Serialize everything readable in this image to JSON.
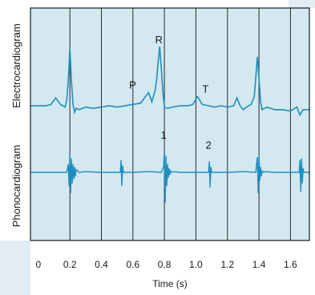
{
  "chart_data": {
    "type": "line",
    "xlabel": "Time (s)",
    "xlim": [
      -0.05,
      1.72
    ],
    "x_ticks": [
      "0",
      "0.2",
      "0.4",
      "0.6",
      "0.8",
      "1.0",
      "1.2",
      "1.4",
      "1.6"
    ],
    "x_tick_values": [
      0,
      0.2,
      0.4,
      0.6,
      0.8,
      1.0,
      1.2,
      1.4,
      1.6
    ],
    "gridlines_x": [
      0.2,
      0.4,
      0.6,
      0.8,
      1.0,
      1.2,
      1.4,
      1.6
    ],
    "grid": true,
    "series": [
      {
        "name": "Electrocardiogram",
        "x": [
          -0.05,
          0.05,
          0.08,
          0.11,
          0.14,
          0.17,
          0.18,
          0.19,
          0.2,
          0.21,
          0.22,
          0.23,
          0.24,
          0.26,
          0.3,
          0.35,
          0.4,
          0.45,
          0.5,
          0.55,
          0.6,
          0.65,
          0.68,
          0.7,
          0.72,
          0.74,
          0.75,
          0.76,
          0.77,
          0.78,
          0.79,
          0.8,
          0.82,
          0.85,
          0.9,
          0.95,
          0.98,
          1.01,
          1.04,
          1.08,
          1.12,
          1.16,
          1.2,
          1.24,
          1.26,
          1.28,
          1.3,
          1.32,
          1.35,
          1.37,
          1.38,
          1.39,
          1.4,
          1.41,
          1.42,
          1.45,
          1.5,
          1.55,
          1.6,
          1.64,
          1.66,
          1.68,
          1.72
        ],
        "values": [
          0.3,
          0.3,
          0.4,
          0.9,
          0.4,
          0.2,
          0.7,
          2.2,
          4.6,
          2.2,
          0.4,
          -0.2,
          0.1,
          0.0,
          0.2,
          0.1,
          0.2,
          0.3,
          0.2,
          0.3,
          0.4,
          0.5,
          1.0,
          1.3,
          0.6,
          1.4,
          2.2,
          3.6,
          4.8,
          3.2,
          1.4,
          0.2,
          0.1,
          0.2,
          0.3,
          0.3,
          0.4,
          1.0,
          0.4,
          0.3,
          0.2,
          0.3,
          0.2,
          0.3,
          0.9,
          0.3,
          0.0,
          0.2,
          0.4,
          1.0,
          2.5,
          4.0,
          2.4,
          0.6,
          0.0,
          0.2,
          0.0,
          0.0,
          -0.1,
          0.2,
          -0.4,
          0.0,
          0.0
        ]
      },
      {
        "name": "Phonocardiogram",
        "x": [
          -0.05,
          0.18,
          0.19,
          0.195,
          0.2,
          0.205,
          0.21,
          0.215,
          0.22,
          0.225,
          0.23,
          0.235,
          0.24,
          0.25,
          0.26,
          0.3,
          0.4,
          0.5,
          0.52,
          0.525,
          0.53,
          0.535,
          0.54,
          0.6,
          0.7,
          0.78,
          0.795,
          0.8,
          0.805,
          0.81,
          0.815,
          0.82,
          0.825,
          0.83,
          0.835,
          0.84,
          0.85,
          0.86,
          0.9,
          1.0,
          1.08,
          1.085,
          1.09,
          1.095,
          1.1,
          1.2,
          1.3,
          1.38,
          1.385,
          1.39,
          1.395,
          1.4,
          1.405,
          1.41,
          1.415,
          1.42,
          1.43,
          1.44,
          1.5,
          1.6,
          1.655,
          1.66,
          1.665,
          1.67,
          1.675,
          1.68,
          1.685,
          1.72
        ],
        "values": [
          0.0,
          0.0,
          0.6,
          -1.0,
          1.3,
          -1.5,
          1.0,
          -0.8,
          0.6,
          -0.5,
          0.4,
          -0.3,
          0.2,
          0.1,
          0.0,
          0.05,
          0.0,
          0.0,
          0.0,
          0.9,
          -1.0,
          0.5,
          0.0,
          0.0,
          0.05,
          0.0,
          0.4,
          1.5,
          -2.2,
          1.2,
          -1.0,
          0.6,
          -0.4,
          0.3,
          -0.2,
          0.1,
          0.0,
          0.05,
          0.0,
          0.0,
          0.0,
          0.8,
          -1.1,
          0.4,
          0.0,
          0.0,
          0.05,
          0.0,
          0.6,
          1.1,
          -1.5,
          1.3,
          -0.6,
          0.4,
          -0.3,
          0.1,
          0.0,
          0.05,
          0.0,
          0.0,
          0.0,
          0.9,
          -1.4,
          1.0,
          -0.8,
          0.3,
          0.0,
          0.0
        ]
      }
    ],
    "ecg_ylim": [
      -0.8,
      6.5
    ],
    "pcg_ylim": [
      -3.2,
      3.2
    ],
    "annotations": [
      {
        "text": "R",
        "x": 0.78,
        "y": 4.8,
        "series": "Electrocardiogram"
      },
      {
        "text": "P",
        "x": 0.7,
        "y": 1.3,
        "series": "Electrocardiogram"
      },
      {
        "text": "T",
        "x": 1.01,
        "y": 1.0,
        "series": "Electrocardiogram"
      },
      {
        "text": "1",
        "x": 0.815,
        "y": 1.5,
        "series": "Phonocardiogram"
      },
      {
        "text": "2",
        "x": 1.09,
        "y": 0.8,
        "series": "Phonocardiogram"
      }
    ],
    "colors": {
      "panel_bg": "#d4e8f0",
      "trace": "#1e8fc0",
      "gridline": "#2b2b2b",
      "frame": "#1a1a1a",
      "margin_bg": "#e2edf3"
    }
  }
}
